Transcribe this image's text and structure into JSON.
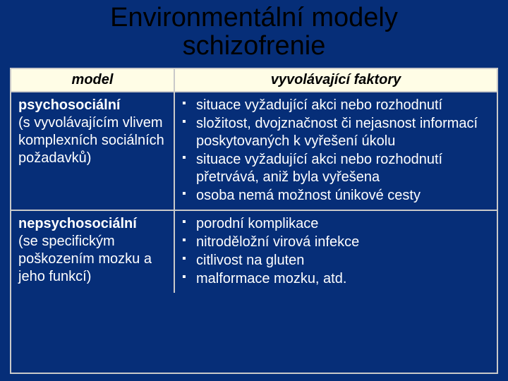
{
  "slide": {
    "title_line1": "Environmentální modely",
    "title_line2": "schizofrenie",
    "background_color": "#062e78",
    "text_color": "#ffffff",
    "title_color": "#000000",
    "header_bg": "#fffde6",
    "border_color": "#c9c9c9",
    "title_fontsize": 38,
    "body_fontsize": 20
  },
  "table": {
    "header": {
      "col1": "model",
      "col2": "vyvolávající faktory"
    },
    "rows": [
      {
        "name": "psychosociální",
        "desc": "(s vyvolávajícím vlivem komplexních sociálních požadavků)",
        "bullets": [
          "situace vyžadující akci nebo rozhodnutí",
          "složitost, dvojznačnost či nejasnost informací poskytovaných k vyřešení úkolu",
          "situace vyžadující akci nebo rozhodnutí přetrvává, aniž byla vyřešena",
          "osoba nemá možnost únikové cesty"
        ]
      },
      {
        "name": "nepsychosociální",
        "desc": "(se specifickým poškozením mozku a jeho funkcí)",
        "bullets": [
          "porodní komplikace",
          "nitroděložní virová infekce",
          "citlivost na gluten",
          "malformace mozku, atd."
        ]
      }
    ]
  }
}
